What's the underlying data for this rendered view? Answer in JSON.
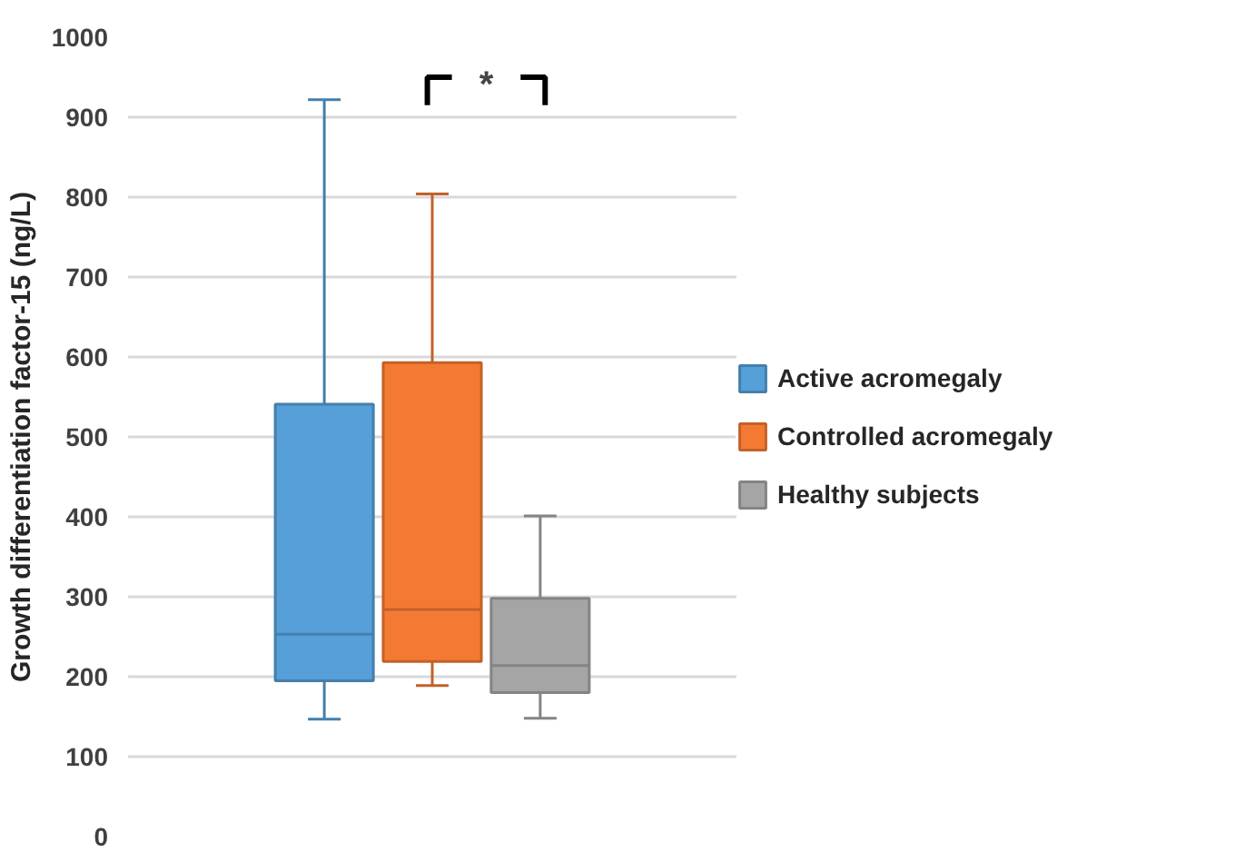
{
  "chart_data": {
    "type": "box",
    "ylabel": "Growth differentiation factor-15 (ng/L)",
    "categories": [
      null
    ],
    "series": [
      {
        "name": "Active acromegaly",
        "color": "#569fd8",
        "boxes": [
          {
            "low": 147,
            "q1": 195,
            "median": 253,
            "q3": 541,
            "high": 922
          }
        ]
      },
      {
        "name": "Controlled acromegaly",
        "color": "#f47a33",
        "boxes": [
          {
            "low": 189,
            "q1": 219,
            "median": 284,
            "q3": 593,
            "high": 804
          }
        ]
      },
      {
        "name": "Healthy subjects",
        "color": "#a5a5a5",
        "boxes": [
          {
            "low": 148,
            "q1": 180,
            "median": 214,
            "q3": 298,
            "high": 401
          }
        ]
      }
    ],
    "ylim": [
      0,
      1000
    ],
    "yticks": [
      0,
      100,
      200,
      300,
      400,
      500,
      600,
      700,
      800,
      900,
      1000
    ],
    "grid": "y",
    "legend": "right",
    "annotations": [
      "*"
    ]
  }
}
